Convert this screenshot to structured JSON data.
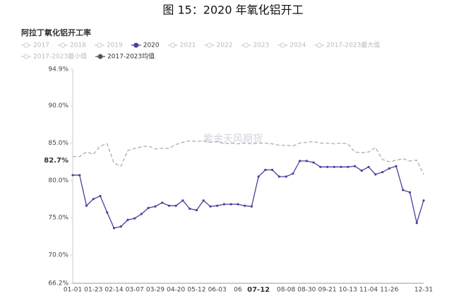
{
  "chart_data": {
    "type": "line",
    "title": "图 15：2020 年氧化铝开工",
    "subtitle": "阿拉丁氧化铝开工率",
    "watermark": "紫金天风期货",
    "categories": [
      "01-01",
      null,
      null,
      "01-23",
      null,
      null,
      "02-14",
      null,
      null,
      "03-07",
      null,
      null,
      "03-29",
      null,
      null,
      "04-20",
      null,
      null,
      "05-12",
      null,
      null,
      "06-03",
      null,
      null,
      "06",
      null,
      null,
      "07-12",
      null,
      null,
      null,
      "08-08",
      null,
      null,
      "08-30",
      null,
      null,
      "09-21",
      null,
      null,
      "10-13",
      null,
      null,
      "11-04",
      null,
      null,
      "11-26",
      null,
      null,
      null,
      null,
      "12-31"
    ],
    "highlight_category": "07-12",
    "series": [
      {
        "name": "2017",
        "color": "#cccccc",
        "visible": false
      },
      {
        "name": "2018",
        "color": "#cccccc",
        "visible": false
      },
      {
        "name": "2019",
        "color": "#cccccc",
        "visible": false
      },
      {
        "name": "2020",
        "color": "#4b3f9c",
        "visible": true,
        "dashed": false,
        "values": [
          80.7,
          80.7,
          76.6,
          77.5,
          77.9,
          75.7,
          73.6,
          73.8,
          74.7,
          74.9,
          75.5,
          76.3,
          76.5,
          77.0,
          76.6,
          76.6,
          77.3,
          76.2,
          76.0,
          77.3,
          76.5,
          76.6,
          76.8,
          76.8,
          76.8,
          76.6,
          76.5,
          80.5,
          81.4,
          81.4,
          80.5,
          80.5,
          80.9,
          82.6,
          82.6,
          82.4,
          81.8,
          81.8,
          81.8,
          81.8,
          81.8,
          81.9,
          81.3,
          81.8,
          80.8,
          81.1,
          81.6,
          81.9,
          78.7,
          78.4,
          74.3,
          77.3
        ]
      },
      {
        "name": "2021",
        "color": "#cccccc",
        "visible": false
      },
      {
        "name": "2022",
        "color": "#cccccc",
        "visible": false
      },
      {
        "name": "2023",
        "color": "#cccccc",
        "visible": false
      },
      {
        "name": "2024",
        "color": "#cccccc",
        "visible": false
      },
      {
        "name": "2017-2023最大值",
        "color": "#cccccc",
        "visible": false
      },
      {
        "name": "2017-2023最小值",
        "color": "#cccccc",
        "visible": false
      },
      {
        "name": "2017-2023均值",
        "color": "#b3b3b3",
        "legend_color": "#555555",
        "visible": true,
        "dashed": true,
        "values": [
          83.2,
          83.2,
          83.8,
          83.5,
          84.6,
          84.9,
          82.3,
          81.9,
          84.0,
          84.3,
          84.5,
          84.6,
          84.2,
          84.3,
          84.3,
          84.8,
          85.1,
          85.3,
          85.2,
          85.3,
          85.1,
          85.2,
          84.9,
          85.0,
          84.9,
          85.0,
          84.9,
          85.0,
          85.0,
          84.9,
          84.7,
          84.7,
          84.6,
          85.0,
          85.1,
          85.2,
          85.0,
          85.0,
          84.9,
          85.0,
          84.9,
          83.8,
          83.7,
          83.8,
          84.4,
          82.8,
          82.5,
          82.7,
          82.9,
          82.6,
          82.7,
          80.8
        ]
      }
    ],
    "ylim": [
      66.2,
      94.9
    ],
    "yticks": [
      {
        "value": 66.2,
        "label": "66.2%"
      },
      {
        "value": 70,
        "label": "70.0%"
      },
      {
        "value": 75,
        "label": "75.0%"
      },
      {
        "value": 80,
        "label": "80.0%"
      },
      {
        "value": 85,
        "label": "85.0%"
      },
      {
        "value": 90,
        "label": "90.0%"
      },
      {
        "value": 94.9,
        "label": "94.9%"
      }
    ],
    "annotation": {
      "value": 82.7,
      "label": "82.7%"
    }
  }
}
